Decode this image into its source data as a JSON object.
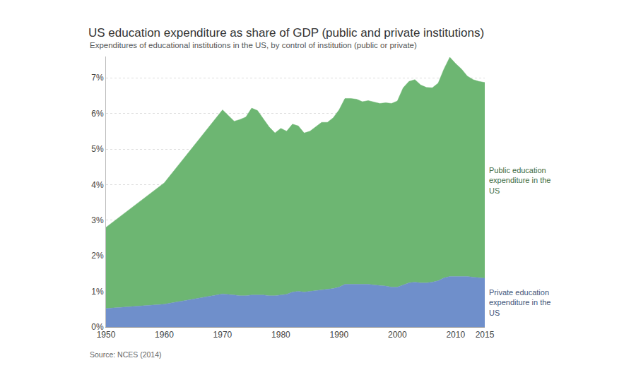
{
  "chart_data": {
    "type": "area",
    "stacked": true,
    "title": "US education expenditure as share of GDP (public and private institutions)",
    "subtitle": "Expenditures of educational institutions in the US, by control of institution (public or private)",
    "source": "Source: NCES (2014)",
    "x": [
      1950,
      1960,
      1970,
      1971,
      1972,
      1973,
      1974,
      1975,
      1976,
      1977,
      1978,
      1979,
      1980,
      1981,
      1982,
      1983,
      1984,
      1985,
      1986,
      1987,
      1988,
      1989,
      1990,
      1991,
      1992,
      1993,
      1994,
      1995,
      1996,
      1997,
      1998,
      1999,
      2000,
      2001,
      2002,
      2003,
      2004,
      2005,
      2006,
      2007,
      2008,
      2009,
      2010,
      2011,
      2012,
      2013,
      2014,
      2015
    ],
    "series": [
      {
        "name": "Private education expenditure in the US",
        "color": "#6f8fcb",
        "values": [
          0.52,
          0.64,
          0.93,
          0.92,
          0.9,
          0.88,
          0.88,
          0.9,
          0.9,
          0.9,
          0.88,
          0.88,
          0.9,
          0.92,
          0.98,
          1.0,
          0.98,
          1.0,
          1.02,
          1.05,
          1.06,
          1.08,
          1.12,
          1.2,
          1.2,
          1.2,
          1.19,
          1.2,
          1.18,
          1.17,
          1.15,
          1.12,
          1.12,
          1.18,
          1.24,
          1.26,
          1.24,
          1.24,
          1.26,
          1.3,
          1.38,
          1.42,
          1.42,
          1.41,
          1.42,
          1.4,
          1.39,
          1.37
        ]
      },
      {
        "name": "Public education expenditure in the US",
        "color": "#6db672",
        "values": [
          2.28,
          3.41,
          5.17,
          5.03,
          4.88,
          4.95,
          5.02,
          5.25,
          5.18,
          4.95,
          4.74,
          4.57,
          4.68,
          4.58,
          4.72,
          4.65,
          4.47,
          4.5,
          4.6,
          4.7,
          4.69,
          4.8,
          4.98,
          5.22,
          5.22,
          5.2,
          5.14,
          5.16,
          5.14,
          5.11,
          5.15,
          5.16,
          5.23,
          5.54,
          5.66,
          5.69,
          5.56,
          5.49,
          5.46,
          5.55,
          5.87,
          6.16,
          5.98,
          5.84,
          5.63,
          5.55,
          5.51,
          5.5
        ]
      }
    ],
    "xlim": [
      1950,
      2015
    ],
    "xticks": [
      1950,
      1960,
      1970,
      1980,
      1990,
      2000,
      2010,
      2015
    ],
    "ylim": [
      0,
      7.6
    ],
    "yticks": [
      {
        "value": 0,
        "label": "0%"
      },
      {
        "value": 1,
        "label": "1%"
      },
      {
        "value": 2,
        "label": "2%"
      },
      {
        "value": 3,
        "label": "3%"
      },
      {
        "value": 4,
        "label": "4%"
      },
      {
        "value": 5,
        "label": "5%"
      },
      {
        "value": 6,
        "label": "6%"
      },
      {
        "value": 7,
        "label": "7%"
      }
    ],
    "grid": true
  }
}
